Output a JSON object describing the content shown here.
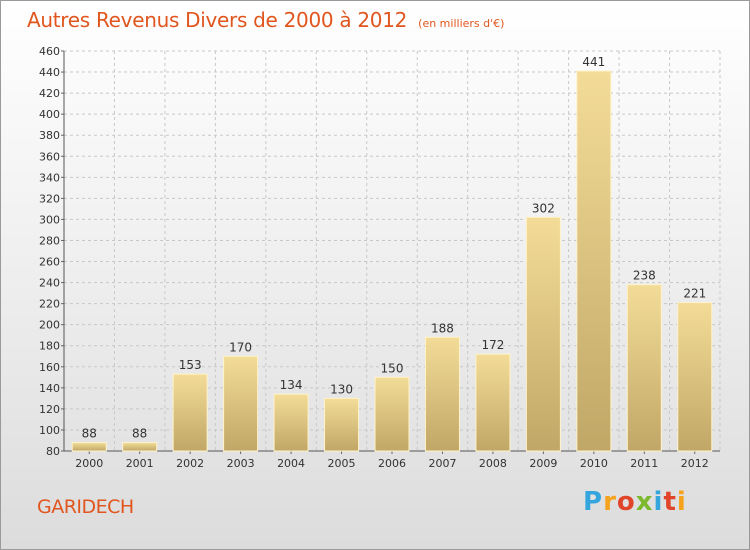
{
  "chart_data": {
    "type": "bar",
    "title": "Autres Revenus Divers de 2000 à 2012",
    "subtitle": "(en milliers d'€)",
    "categories": [
      "2000",
      "2001",
      "2002",
      "2003",
      "2004",
      "2005",
      "2006",
      "2007",
      "2008",
      "2009",
      "2010",
      "2011",
      "2012"
    ],
    "values": [
      88,
      88,
      153,
      170,
      134,
      130,
      150,
      188,
      172,
      302,
      441,
      238,
      221
    ],
    "ylim": [
      80,
      460
    ],
    "yticks": [
      80,
      100,
      120,
      140,
      160,
      180,
      200,
      220,
      240,
      260,
      280,
      300,
      320,
      340,
      360,
      380,
      400,
      420,
      440,
      460
    ],
    "grid": true,
    "data_labels": true,
    "xlabel": "",
    "ylabel": "",
    "colors": {
      "bar_top": "#f3dc98",
      "bar_bottom": "#c1a767",
      "title": "#e0561e",
      "grid": "#c8c8c8"
    }
  },
  "location": "GARIDECH",
  "brand": {
    "letters": [
      "P",
      "r",
      "o",
      "x",
      "i",
      "t",
      "i"
    ],
    "colors": [
      "#35a6dd",
      "#f5a31c",
      "#e0452a",
      "#7cb92f",
      "#35a6dd",
      "#e0452a",
      "#f5a31c"
    ]
  }
}
